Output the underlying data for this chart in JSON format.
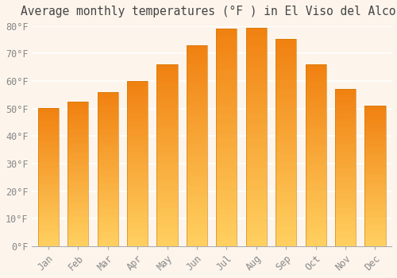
{
  "title": "Average monthly temperatures (°F ) in El Viso del Alcor",
  "months": [
    "Jan",
    "Feb",
    "Mar",
    "Apr",
    "May",
    "Jun",
    "Jul",
    "Aug",
    "Sep",
    "Oct",
    "Nov",
    "Dec"
  ],
  "values": [
    50.2,
    52.5,
    56.0,
    60.0,
    66.0,
    73.0,
    79.2,
    79.5,
    75.3,
    66.0,
    57.0,
    51.0
  ],
  "bar_color": "#F5A623",
  "bar_color_bottom": "#FFD060",
  "bar_color_top": "#F08010",
  "ylim": [
    0,
    80
  ],
  "background_color": "#FDF5EC",
  "grid_color": "#FFFFFF",
  "title_fontsize": 10.5,
  "tick_fontsize": 8.5,
  "ytick_labels": [
    "0°F",
    "10°F",
    "20°F",
    "30°F",
    "40°F",
    "50°F",
    "60°F",
    "70°F",
    "80°F"
  ]
}
